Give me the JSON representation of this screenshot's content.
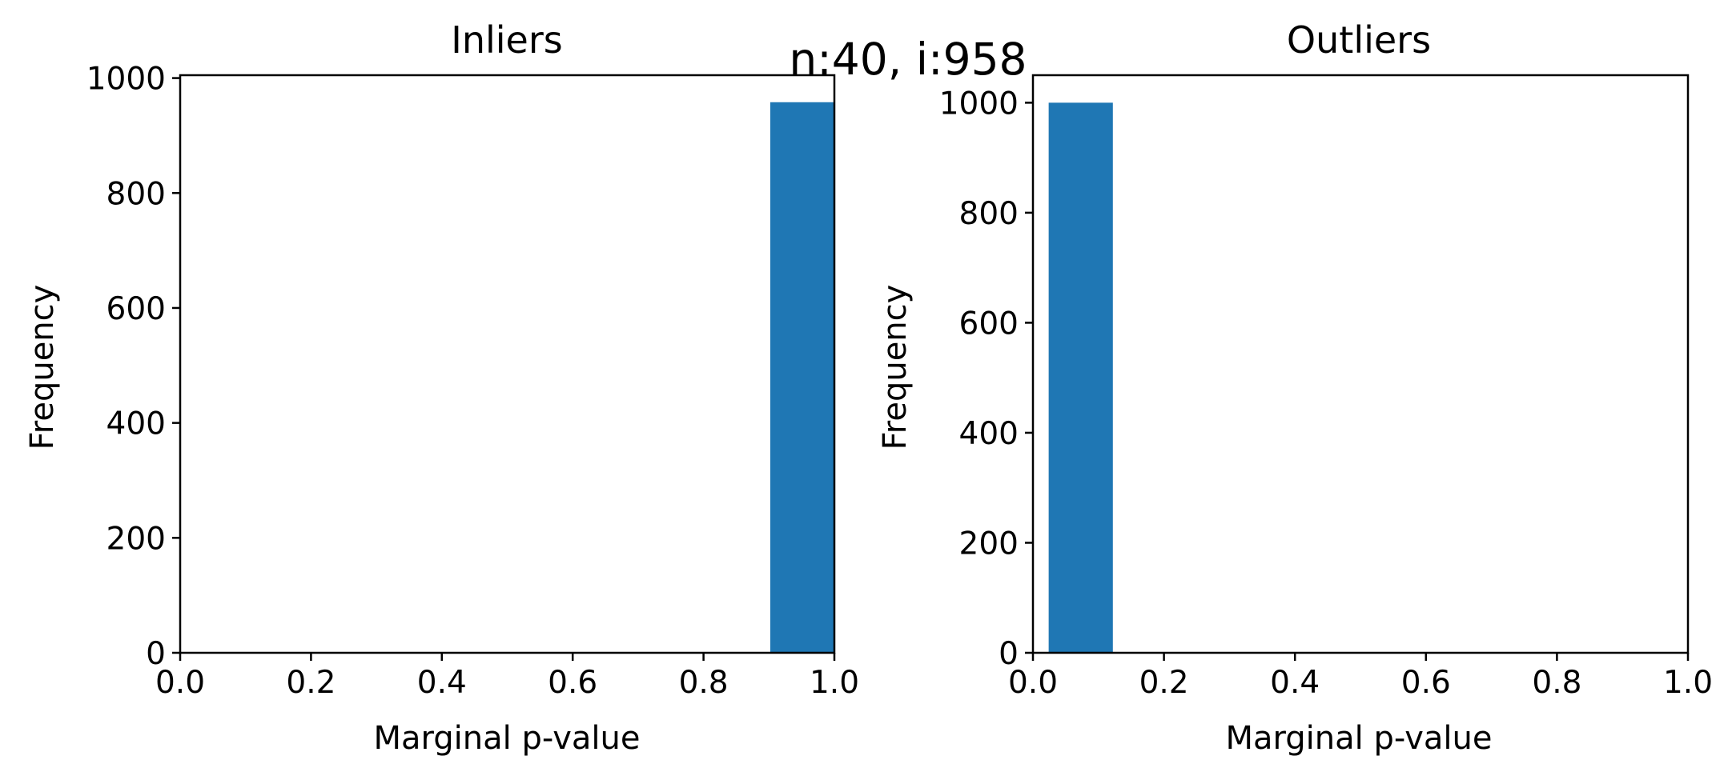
{
  "figure": {
    "suptitle": "n:40, i:958"
  },
  "chart_data": [
    {
      "type": "bar",
      "title": "Inliers",
      "xlabel": "Marginal p-value",
      "ylabel": "Frequency",
      "xlim": [
        0,
        1
      ],
      "ylim": [
        0,
        1005
      ],
      "xticks": [
        "0.0",
        "0.2",
        "0.4",
        "0.6",
        "0.8",
        "1.0"
      ],
      "yticks": [
        "0",
        "200",
        "400",
        "600",
        "800",
        "1000"
      ],
      "bar_color": "#1f77b4",
      "bins": [
        {
          "x0": 0.902,
          "x1": 1.0,
          "value": 958
        }
      ]
    },
    {
      "type": "bar",
      "title": "Outliers",
      "xlabel": "Marginal p-value",
      "ylabel": "Frequency",
      "xlim": [
        0,
        1
      ],
      "ylim": [
        0,
        1050
      ],
      "xticks": [
        "0.0",
        "0.2",
        "0.4",
        "0.6",
        "0.8",
        "1.0"
      ],
      "yticks": [
        "0",
        "200",
        "400",
        "600",
        "800",
        "1000"
      ],
      "bar_color": "#1f77b4",
      "bins": [
        {
          "x0": 0.024,
          "x1": 0.122,
          "value": 1000
        }
      ]
    }
  ]
}
